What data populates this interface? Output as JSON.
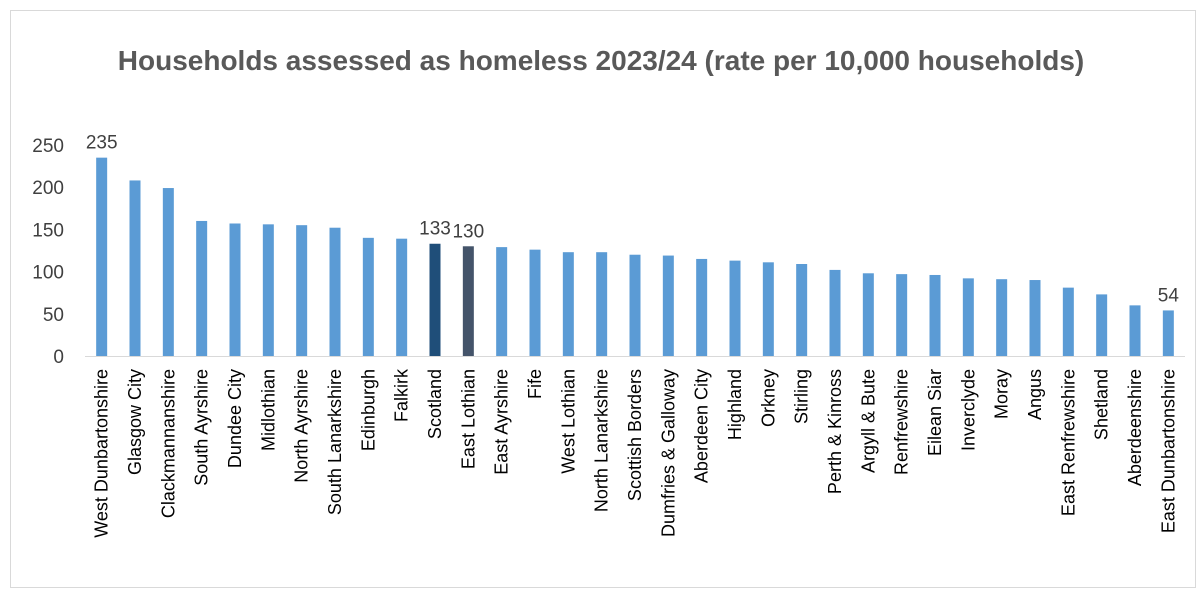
{
  "chart_data": {
    "type": "bar",
    "title": "Households assessed as homeless 2023/24 (rate per 10,000 households)",
    "xlabel": "",
    "ylabel": "",
    "ylim": [
      0,
      250
    ],
    "yticks": [
      0,
      50,
      100,
      150,
      200,
      250
    ],
    "grid": false,
    "legend": "none",
    "categories": [
      "West Dunbartonshire",
      "Glasgow City",
      "Clackmannanshire",
      "South Ayrshire",
      "Dundee City",
      "Midlothian",
      "North Ayrshire",
      "South Lanarkshire",
      "Edinburgh",
      "Falkirk",
      "Scotland",
      "East Lothian",
      "East Ayrshire",
      "Fife",
      "West Lothian",
      "North Lanarkshire",
      "Scottish Borders",
      "Dumfries & Galloway",
      "Aberdeen City",
      "Highland",
      "Orkney",
      "Stirling",
      "Perth & Kinross",
      "Argyll & Bute",
      "Renfrewshire",
      "Eilean Siar",
      "Inverclyde",
      "Moray",
      "Angus",
      "East Renfrewshire",
      "Shetland",
      "Aberdeenshire",
      "East Dunbartonshire"
    ],
    "values": [
      235,
      208,
      199,
      160,
      157,
      156,
      155,
      152,
      140,
      139,
      133,
      130,
      129,
      126,
      123,
      123,
      120,
      119,
      115,
      113,
      111,
      109,
      102,
      98,
      97,
      96,
      92,
      91,
      90,
      81,
      73,
      60,
      54
    ],
    "data_labels": {
      "West Dunbartonshire": "235",
      "Scotland": "133",
      "East Lothian": "130",
      "East Dunbartonshire": "54"
    },
    "colors": {
      "default": "#5b9bd5",
      "Scotland": "#1f4e79",
      "East Lothian": "#44546a"
    }
  }
}
